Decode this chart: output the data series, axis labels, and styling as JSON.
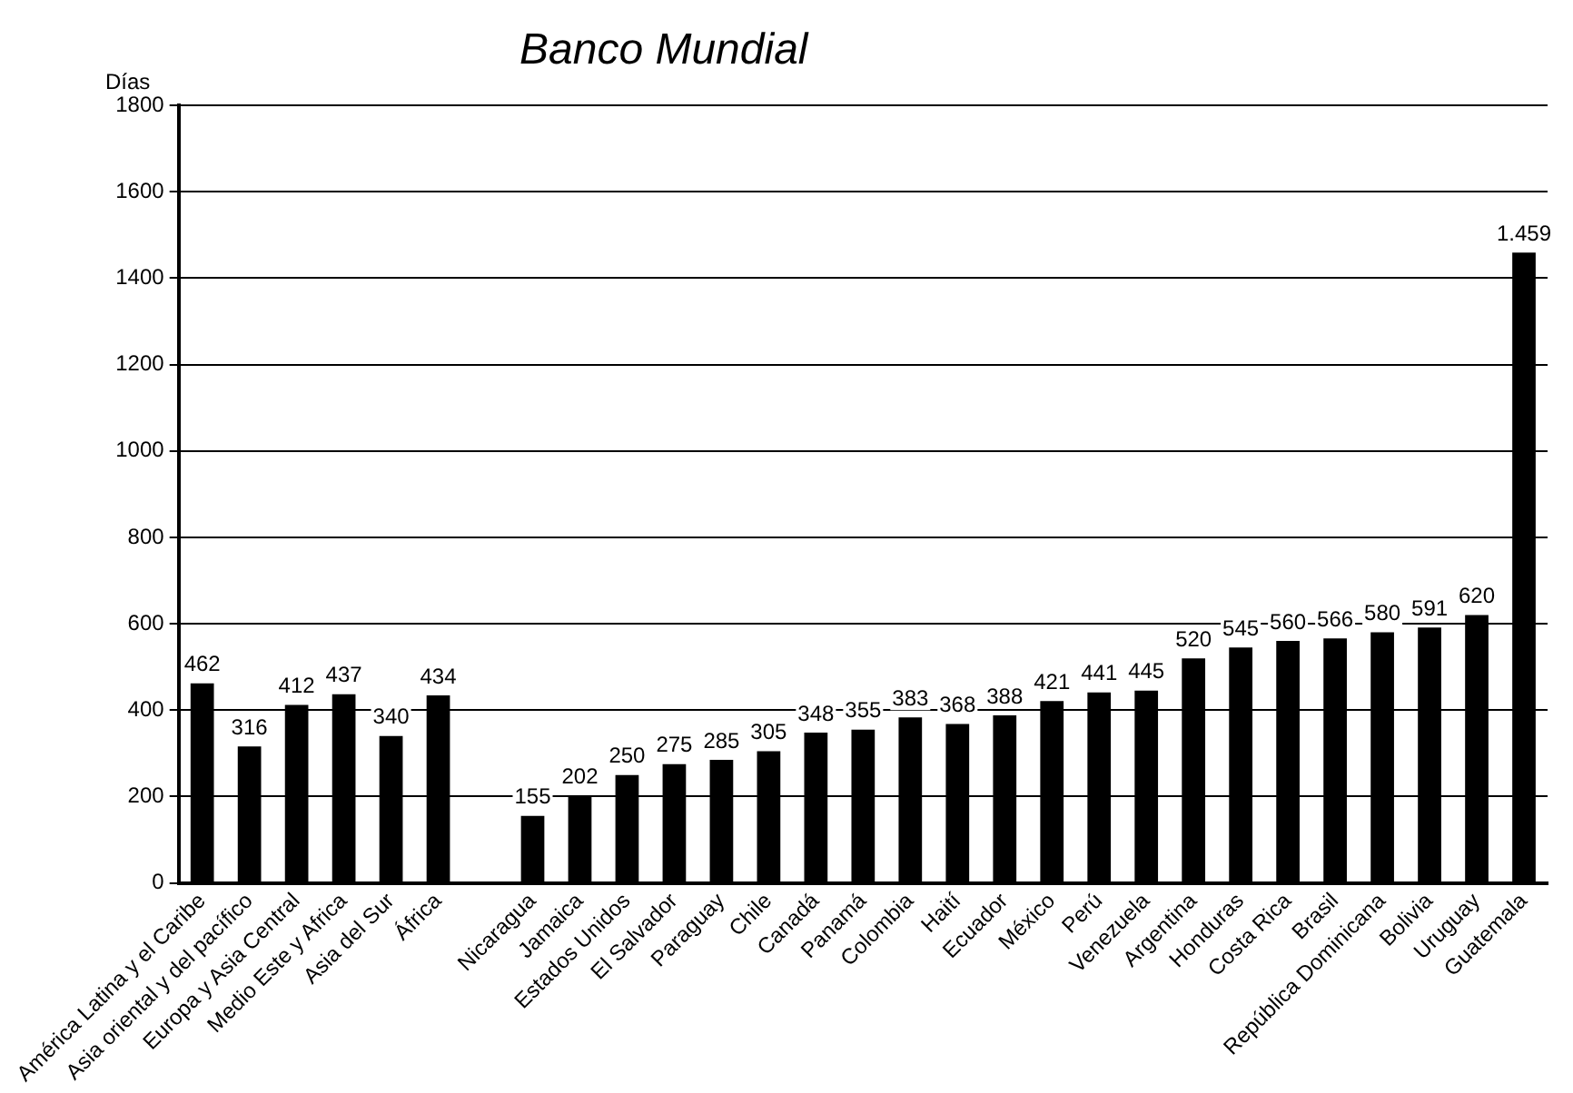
{
  "chart_data": {
    "type": "bar",
    "title": "Banco Mundial",
    "ylabel": "Días",
    "categories": [
      "América Latina y el Caribe",
      "Asia oriental y del pacífico",
      "Europa y Asia Central",
      "Medio Este y Africa",
      "Asia del Sur",
      "África",
      null,
      "Nicaragua",
      "Jamaica",
      "Estados Unidos",
      "El Salvador",
      "Paraguay",
      "Chile",
      "Canadá",
      "Panamá",
      "Colombia",
      "Haití",
      "Ecuador",
      "México",
      "Perú",
      "Venezuela",
      "Argentina",
      "Honduras",
      "Costa Rica",
      "Brasil",
      "República Dominicana",
      "Bolivia",
      "Uruguay",
      "Guatemala"
    ],
    "values": [
      462,
      316,
      412,
      437,
      340,
      434,
      null,
      155,
      202,
      250,
      275,
      285,
      305,
      348,
      355,
      383,
      368,
      388,
      421,
      441,
      445,
      520,
      545,
      560,
      566,
      580,
      591,
      620,
      1459
    ],
    "value_labels": [
      "462",
      "316",
      "412",
      "437",
      "340",
      "434",
      null,
      "155",
      "202",
      "250",
      "275",
      "285",
      "305",
      "348",
      "355",
      "383",
      "368",
      "388",
      "421",
      "441",
      "445",
      "520",
      "545",
      "560",
      "566",
      "580",
      "591",
      "620",
      "1.459"
    ],
    "color": "#000000",
    "ylim": [
      0,
      1800
    ],
    "yticks": [
      0,
      200,
      400,
      600,
      800,
      1000,
      1200,
      1400,
      1600,
      1800
    ],
    "grid": "y",
    "legend": false
  }
}
